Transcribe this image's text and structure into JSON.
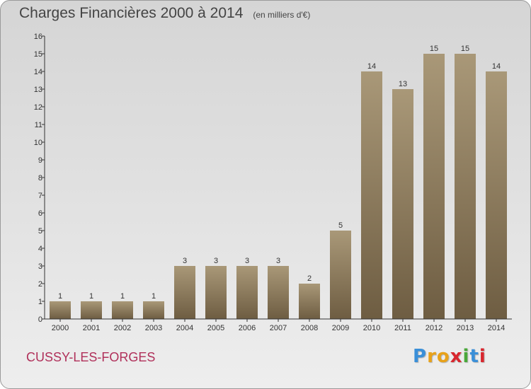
{
  "title": "Charges Financières 2000 à 2014",
  "subtitle": "(en milliers d'€)",
  "place": "CUSSY-LES-FORGES",
  "logo": {
    "letters": [
      "P",
      "r",
      "o",
      "x",
      "i",
      "t",
      "i"
    ],
    "colors": [
      "#3a8fd8",
      "#e8a21a",
      "#e8a21a",
      "#d8262e",
      "#49a83a",
      "#3a8fd8",
      "#d8262e"
    ]
  },
  "colors": {
    "bar_top": "#a99878",
    "bar_bottom": "#6e5d42",
    "axis": "#333333"
  },
  "chart_data": {
    "type": "bar",
    "title": "Charges Financières 2000 à 2014",
    "categories": [
      "2000",
      "2001",
      "2002",
      "2003",
      "2004",
      "2005",
      "2006",
      "2007",
      "2008",
      "2009",
      "2010",
      "2011",
      "2012",
      "2013",
      "2014"
    ],
    "values": [
      1,
      1,
      1,
      1,
      3,
      3,
      3,
      3,
      2,
      5,
      14,
      13,
      15,
      15,
      14
    ],
    "data_labels": [
      "1",
      "1",
      "1",
      "1",
      "3",
      "3",
      "3",
      "3",
      "2",
      "5",
      "14",
      "13",
      "15",
      "15",
      "14"
    ],
    "ylim": [
      0,
      16
    ],
    "yticks": [
      "0",
      "1",
      "2",
      "3",
      "4",
      "5",
      "6",
      "7",
      "8",
      "9",
      "10",
      "11",
      "12",
      "13",
      "14",
      "15",
      "16"
    ],
    "grid": false,
    "legend": "none"
  }
}
